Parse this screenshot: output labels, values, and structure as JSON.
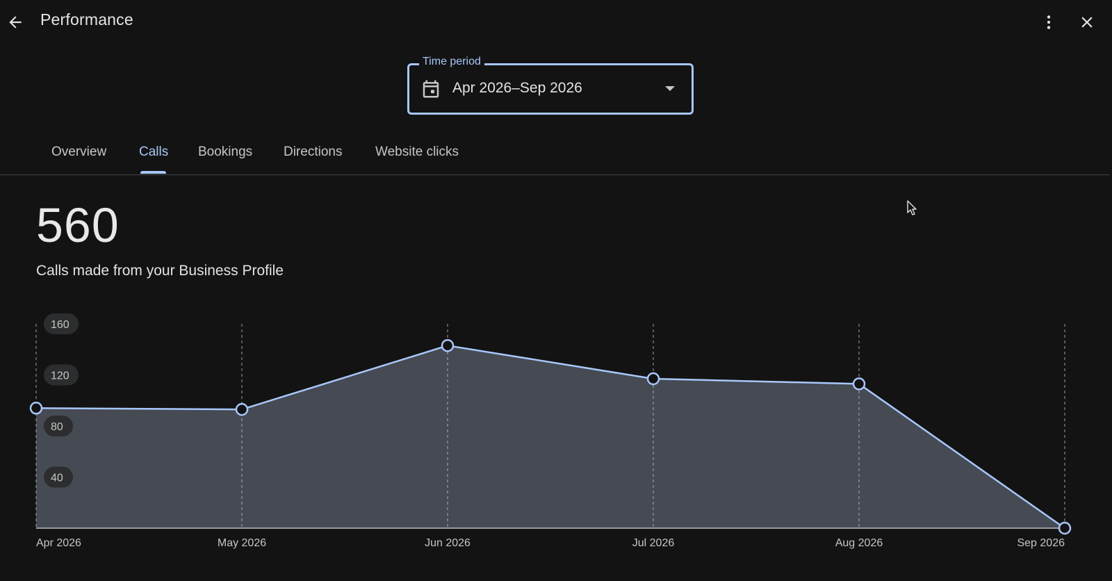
{
  "header": {
    "title": "Performance",
    "back_icon": "arrow-back-icon",
    "more_icon": "more-vert-icon",
    "close_icon": "close-icon"
  },
  "time_period": {
    "label": "Time period",
    "value": "Apr 2026–Sep 2026",
    "icon": "calendar-icon"
  },
  "tabs": [
    {
      "label": "Overview",
      "active": false
    },
    {
      "label": "Calls",
      "active": true
    },
    {
      "label": "Bookings",
      "active": false
    },
    {
      "label": "Directions",
      "active": false
    },
    {
      "label": "Website clicks",
      "active": false
    }
  ],
  "metric": {
    "value": "560",
    "description": "Calls made from your Business Profile"
  },
  "colors": {
    "accent": "#a8c7fa",
    "background": "#131313",
    "area_fill": "#454a53"
  },
  "chart_data": {
    "type": "area",
    "categories": [
      "Apr 2026",
      "May 2026",
      "Jun 2026",
      "Jul 2026",
      "Aug 2026",
      "Sep 2026"
    ],
    "values": [
      94,
      93,
      143,
      117,
      113,
      0
    ],
    "yticks": [
      40,
      80,
      120,
      160
    ],
    "ylim": [
      0,
      160
    ],
    "grid": true
  }
}
